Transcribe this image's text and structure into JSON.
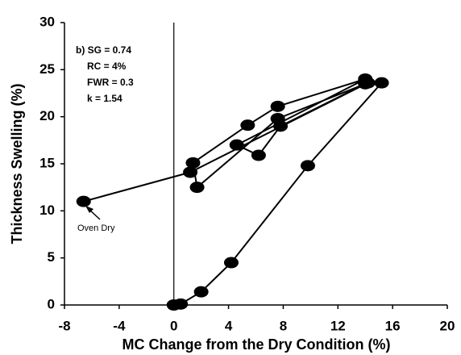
{
  "chart_data": {
    "type": "line",
    "xlabel": "MC Change from the Dry Condition (%)",
    "ylabel": "Thickness Swelling (%)",
    "annotations": [
      "b) SG = 0.74",
      "RC = 4%",
      "FWR = 0.3",
      "k = 1.54",
      "Oven Dry"
    ],
    "x": [
      0,
      0.5,
      2.0,
      4.2,
      9.8,
      15.2,
      14.0,
      7.8,
      6.2,
      4.6,
      14.0,
      7.6,
      5.4,
      1.4,
      1.7,
      7.6,
      14.2,
      1.2,
      -6.6
    ],
    "values": [
      0,
      0.1,
      1.4,
      4.5,
      14.8,
      23.6,
      23.5,
      19.0,
      15.9,
      17.0,
      24.0,
      21.1,
      19.1,
      15.1,
      12.5,
      19.8,
      23.6,
      14.1,
      11.0
    ],
    "color": "#000000",
    "xlim": [
      -8,
      20
    ],
    "xticks": [
      -8,
      -4,
      0,
      4,
      8,
      12,
      16,
      20
    ],
    "ylim": [
      0,
      30
    ],
    "yticks": [
      0,
      5,
      10,
      15,
      20,
      25,
      30
    ]
  }
}
